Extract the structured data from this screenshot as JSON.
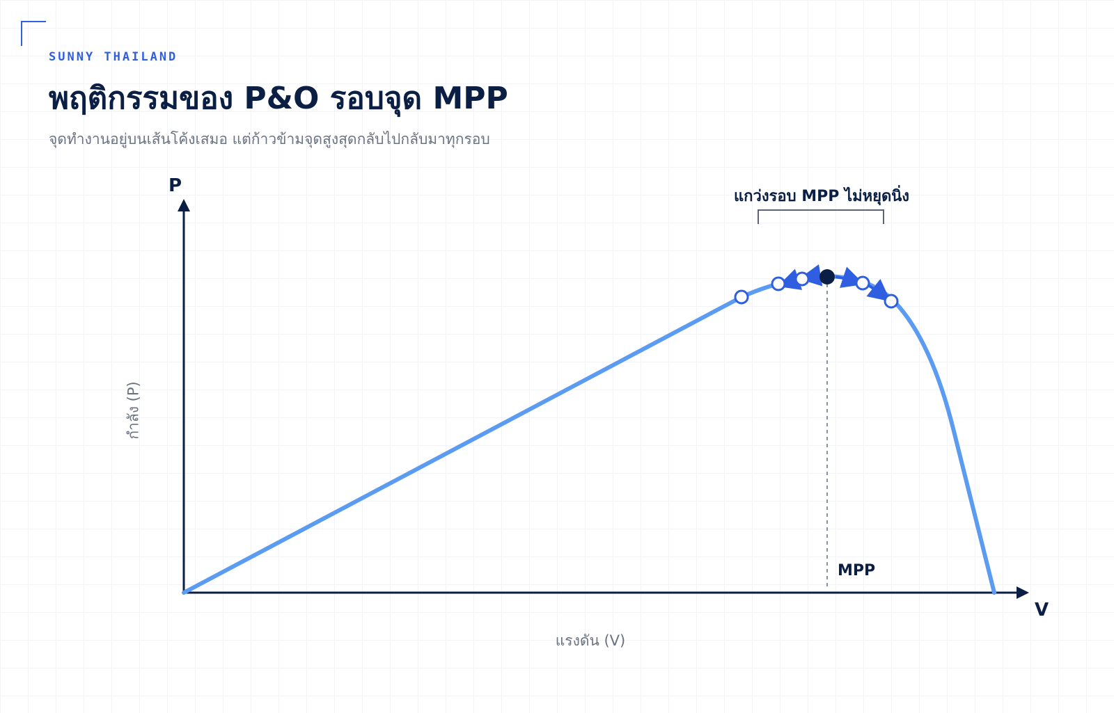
{
  "header": {
    "brand": "SUNNY THAILAND",
    "title": "พฤติกรรมของ P&O รอบจุด MPP",
    "subtitle": "จุดทำงานอยู่บนเส้นโค้งเสมอ แต่ก้าวข้ามจุดสูงสุดกลับไปกลับมาทุกรอบ"
  },
  "axes": {
    "y_symbol": "P",
    "x_symbol": "V",
    "y_label": "กำลัง (P)",
    "x_label": "แรงดัน (V)"
  },
  "annotations": {
    "mpp_label": "MPP",
    "oscillation_label": "แกว่งรอบ MPP ไม่หยุดนิ่ง"
  },
  "colors": {
    "curve": "#5b9cf2",
    "arrow": "#2f5fe0",
    "axis": "#0b1f44",
    "mpp_point": "#0b1f44",
    "bracket": "#5a6478",
    "brand": "#2f5fe0"
  }
}
